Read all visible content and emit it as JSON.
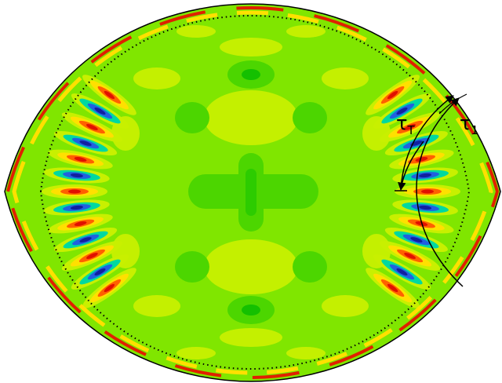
{
  "labels": [
    {
      "symbol": "τ",
      "subscript": "T"
    },
    {
      "symbol": "τ",
      "subscript": "1"
    }
  ]
}
